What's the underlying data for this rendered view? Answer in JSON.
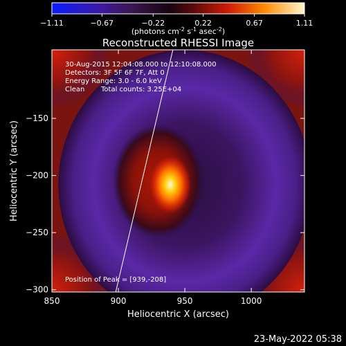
{
  "chart_data": {
    "type": "heatmap",
    "title": "Reconstructed RHESSI Image",
    "xlabel": "Heliocentric X (arcsec)",
    "ylabel": "Heliocentric Y (arcsec)",
    "xlim": [
      850,
      1040
    ],
    "ylim": [
      -302,
      -90
    ],
    "x_ticks": [
      850,
      900,
      950,
      1000
    ],
    "y_ticks": [
      -300,
      -250,
      -200,
      -150
    ],
    "colorbar": {
      "ticks": [
        "-1.11",
        "-0.67",
        "-0.22",
        "0.22",
        "0.67",
        "1.11"
      ],
      "range": [
        -1.11,
        1.11
      ],
      "units_label": "(photons cm",
      "units_exp1": "-2",
      "units_mid": " s",
      "units_exp2": "-1",
      "units_mid2": " asec",
      "units_exp3": "-2",
      "units_end": ")"
    },
    "annotations": {
      "time_range": "30-Aug-2015 12:04:08.000 to 12:10:08.000",
      "detectors": "Detectors: 3F 5F 6F 7F, Att 0",
      "energy": "Energy Range: 3.0 - 6.0 keV",
      "clean": "Clean",
      "counts": "Total counts: 3.25E+04",
      "peak": "Position of Peak = [939,-208]"
    },
    "source": {
      "peak_position": [
        939,
        -208
      ],
      "peak_value": 1.11,
      "core_center": [
        930,
        -205
      ],
      "ring_center": [
        950,
        -208
      ],
      "ring_radius_arcsec": 78
    },
    "limb_line": [
      [
        898,
        -302
      ],
      [
        941,
        -90
      ]
    ],
    "footer": "23-May-2022 05:38",
    "colors": {
      "background": "#000000",
      "annotation_text": "#ffffff"
    }
  }
}
